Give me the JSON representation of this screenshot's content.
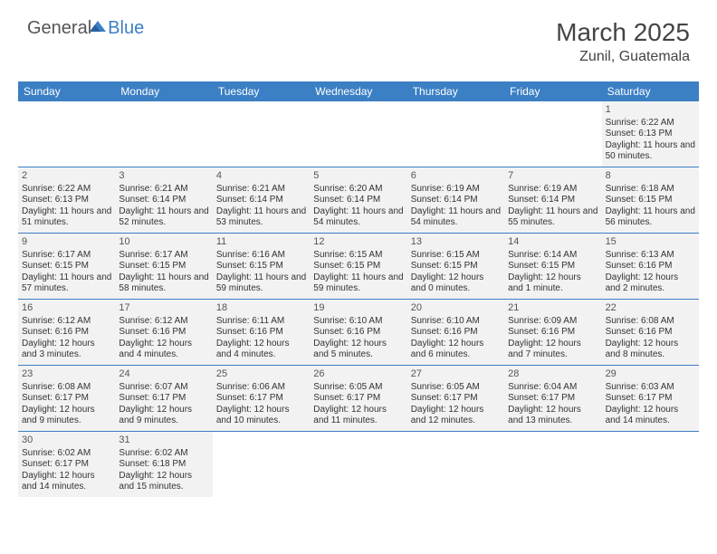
{
  "logo": {
    "text1": "General",
    "text2": "Blue"
  },
  "title": "March 2025",
  "location": "Zunil, Guatemala",
  "colors": {
    "header_bg": "#3b7fc4",
    "cell_bg": "#f2f2f2",
    "border": "#3b7fc4"
  },
  "weekdays": [
    "Sunday",
    "Monday",
    "Tuesday",
    "Wednesday",
    "Thursday",
    "Friday",
    "Saturday"
  ],
  "weeks": [
    [
      null,
      null,
      null,
      null,
      null,
      null,
      {
        "n": "1",
        "sr": "Sunrise: 6:22 AM",
        "ss": "Sunset: 6:13 PM",
        "dl": "Daylight: 11 hours and 50 minutes."
      }
    ],
    [
      {
        "n": "2",
        "sr": "Sunrise: 6:22 AM",
        "ss": "Sunset: 6:13 PM",
        "dl": "Daylight: 11 hours and 51 minutes."
      },
      {
        "n": "3",
        "sr": "Sunrise: 6:21 AM",
        "ss": "Sunset: 6:14 PM",
        "dl": "Daylight: 11 hours and 52 minutes."
      },
      {
        "n": "4",
        "sr": "Sunrise: 6:21 AM",
        "ss": "Sunset: 6:14 PM",
        "dl": "Daylight: 11 hours and 53 minutes."
      },
      {
        "n": "5",
        "sr": "Sunrise: 6:20 AM",
        "ss": "Sunset: 6:14 PM",
        "dl": "Daylight: 11 hours and 54 minutes."
      },
      {
        "n": "6",
        "sr": "Sunrise: 6:19 AM",
        "ss": "Sunset: 6:14 PM",
        "dl": "Daylight: 11 hours and 54 minutes."
      },
      {
        "n": "7",
        "sr": "Sunrise: 6:19 AM",
        "ss": "Sunset: 6:14 PM",
        "dl": "Daylight: 11 hours and 55 minutes."
      },
      {
        "n": "8",
        "sr": "Sunrise: 6:18 AM",
        "ss": "Sunset: 6:15 PM",
        "dl": "Daylight: 11 hours and 56 minutes."
      }
    ],
    [
      {
        "n": "9",
        "sr": "Sunrise: 6:17 AM",
        "ss": "Sunset: 6:15 PM",
        "dl": "Daylight: 11 hours and 57 minutes."
      },
      {
        "n": "10",
        "sr": "Sunrise: 6:17 AM",
        "ss": "Sunset: 6:15 PM",
        "dl": "Daylight: 11 hours and 58 minutes."
      },
      {
        "n": "11",
        "sr": "Sunrise: 6:16 AM",
        "ss": "Sunset: 6:15 PM",
        "dl": "Daylight: 11 hours and 59 minutes."
      },
      {
        "n": "12",
        "sr": "Sunrise: 6:15 AM",
        "ss": "Sunset: 6:15 PM",
        "dl": "Daylight: 11 hours and 59 minutes."
      },
      {
        "n": "13",
        "sr": "Sunrise: 6:15 AM",
        "ss": "Sunset: 6:15 PM",
        "dl": "Daylight: 12 hours and 0 minutes."
      },
      {
        "n": "14",
        "sr": "Sunrise: 6:14 AM",
        "ss": "Sunset: 6:15 PM",
        "dl": "Daylight: 12 hours and 1 minute."
      },
      {
        "n": "15",
        "sr": "Sunrise: 6:13 AM",
        "ss": "Sunset: 6:16 PM",
        "dl": "Daylight: 12 hours and 2 minutes."
      }
    ],
    [
      {
        "n": "16",
        "sr": "Sunrise: 6:12 AM",
        "ss": "Sunset: 6:16 PM",
        "dl": "Daylight: 12 hours and 3 minutes."
      },
      {
        "n": "17",
        "sr": "Sunrise: 6:12 AM",
        "ss": "Sunset: 6:16 PM",
        "dl": "Daylight: 12 hours and 4 minutes."
      },
      {
        "n": "18",
        "sr": "Sunrise: 6:11 AM",
        "ss": "Sunset: 6:16 PM",
        "dl": "Daylight: 12 hours and 4 minutes."
      },
      {
        "n": "19",
        "sr": "Sunrise: 6:10 AM",
        "ss": "Sunset: 6:16 PM",
        "dl": "Daylight: 12 hours and 5 minutes."
      },
      {
        "n": "20",
        "sr": "Sunrise: 6:10 AM",
        "ss": "Sunset: 6:16 PM",
        "dl": "Daylight: 12 hours and 6 minutes."
      },
      {
        "n": "21",
        "sr": "Sunrise: 6:09 AM",
        "ss": "Sunset: 6:16 PM",
        "dl": "Daylight: 12 hours and 7 minutes."
      },
      {
        "n": "22",
        "sr": "Sunrise: 6:08 AM",
        "ss": "Sunset: 6:16 PM",
        "dl": "Daylight: 12 hours and 8 minutes."
      }
    ],
    [
      {
        "n": "23",
        "sr": "Sunrise: 6:08 AM",
        "ss": "Sunset: 6:17 PM",
        "dl": "Daylight: 12 hours and 9 minutes."
      },
      {
        "n": "24",
        "sr": "Sunrise: 6:07 AM",
        "ss": "Sunset: 6:17 PM",
        "dl": "Daylight: 12 hours and 9 minutes."
      },
      {
        "n": "25",
        "sr": "Sunrise: 6:06 AM",
        "ss": "Sunset: 6:17 PM",
        "dl": "Daylight: 12 hours and 10 minutes."
      },
      {
        "n": "26",
        "sr": "Sunrise: 6:05 AM",
        "ss": "Sunset: 6:17 PM",
        "dl": "Daylight: 12 hours and 11 minutes."
      },
      {
        "n": "27",
        "sr": "Sunrise: 6:05 AM",
        "ss": "Sunset: 6:17 PM",
        "dl": "Daylight: 12 hours and 12 minutes."
      },
      {
        "n": "28",
        "sr": "Sunrise: 6:04 AM",
        "ss": "Sunset: 6:17 PM",
        "dl": "Daylight: 12 hours and 13 minutes."
      },
      {
        "n": "29",
        "sr": "Sunrise: 6:03 AM",
        "ss": "Sunset: 6:17 PM",
        "dl": "Daylight: 12 hours and 14 minutes."
      }
    ],
    [
      {
        "n": "30",
        "sr": "Sunrise: 6:02 AM",
        "ss": "Sunset: 6:17 PM",
        "dl": "Daylight: 12 hours and 14 minutes."
      },
      {
        "n": "31",
        "sr": "Sunrise: 6:02 AM",
        "ss": "Sunset: 6:18 PM",
        "dl": "Daylight: 12 hours and 15 minutes."
      },
      null,
      null,
      null,
      null,
      null
    ]
  ]
}
